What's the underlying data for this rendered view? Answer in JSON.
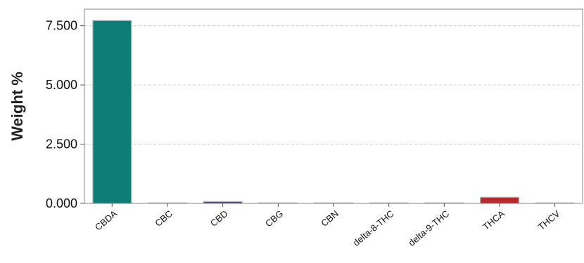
{
  "chart_data": {
    "type": "bar",
    "title": "",
    "xlabel": "",
    "ylabel": "Weight %",
    "categories": [
      "CBDA",
      "CBC",
      "CBD",
      "CBG",
      "CBN",
      "delta-8-THC",
      "delta-9-THC",
      "THCA",
      "THCV"
    ],
    "values": [
      7.72,
      0.02,
      0.08,
      0.01,
      0.01,
      0.0,
      0.0,
      0.26,
      0.01
    ],
    "y_ticks": [
      "0.000",
      "2.500",
      "5.000",
      "7.500"
    ],
    "y_tick_values": [
      0,
      2.5,
      5,
      7.5
    ],
    "ylim": [
      0,
      8.2
    ],
    "grid": "horizontal dashed",
    "legend": "none",
    "bar_colors": [
      "#0e7d78",
      "#9a8fa6",
      "#4a4a7a",
      "#9a9a9a",
      "#9a9a9a",
      "#9a9a9a",
      "#9a9a9a",
      "#c0272d",
      "#9a9a9a"
    ]
  }
}
